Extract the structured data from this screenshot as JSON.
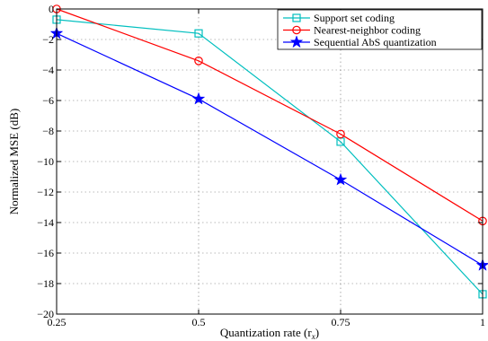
{
  "chart_data": {
    "type": "line",
    "x": [
      0.25,
      0.5,
      0.75,
      1
    ],
    "xtick_labels": [
      "0.25",
      "0.5",
      "0.75",
      "1"
    ],
    "ytick_values": [
      0,
      -2,
      -4,
      -6,
      -8,
      -10,
      -12,
      -14,
      -16,
      -18,
      -20
    ],
    "ytick_labels": [
      "0",
      "−2",
      "−4",
      "−6",
      "−8",
      "−10",
      "−12",
      "−14",
      "−16",
      "−18",
      "−20"
    ],
    "xlim": [
      0.25,
      1
    ],
    "ylim": [
      -20,
      0
    ],
    "xlabel": "Quantization rate (r",
    "xlabel_sub": "x",
    "xlabel_end": ")",
    "ylabel": "Normalized MSE (dB)",
    "grid": true,
    "legend_position": "top-right",
    "series": [
      {
        "name": "Support set coding",
        "color": "#00bfbf",
        "marker": "square",
        "values": [
          -0.7,
          -1.6,
          -8.7,
          -18.7
        ]
      },
      {
        "name": "Nearest-neighbor coding",
        "color": "#ff0000",
        "marker": "circle",
        "values": [
          0.0,
          -3.4,
          -8.2,
          -13.9
        ]
      },
      {
        "name": "Sequential AbS quantization",
        "color": "#0000ff",
        "marker": "star",
        "values": [
          -1.6,
          -5.9,
          -11.2,
          -16.8
        ]
      }
    ]
  }
}
